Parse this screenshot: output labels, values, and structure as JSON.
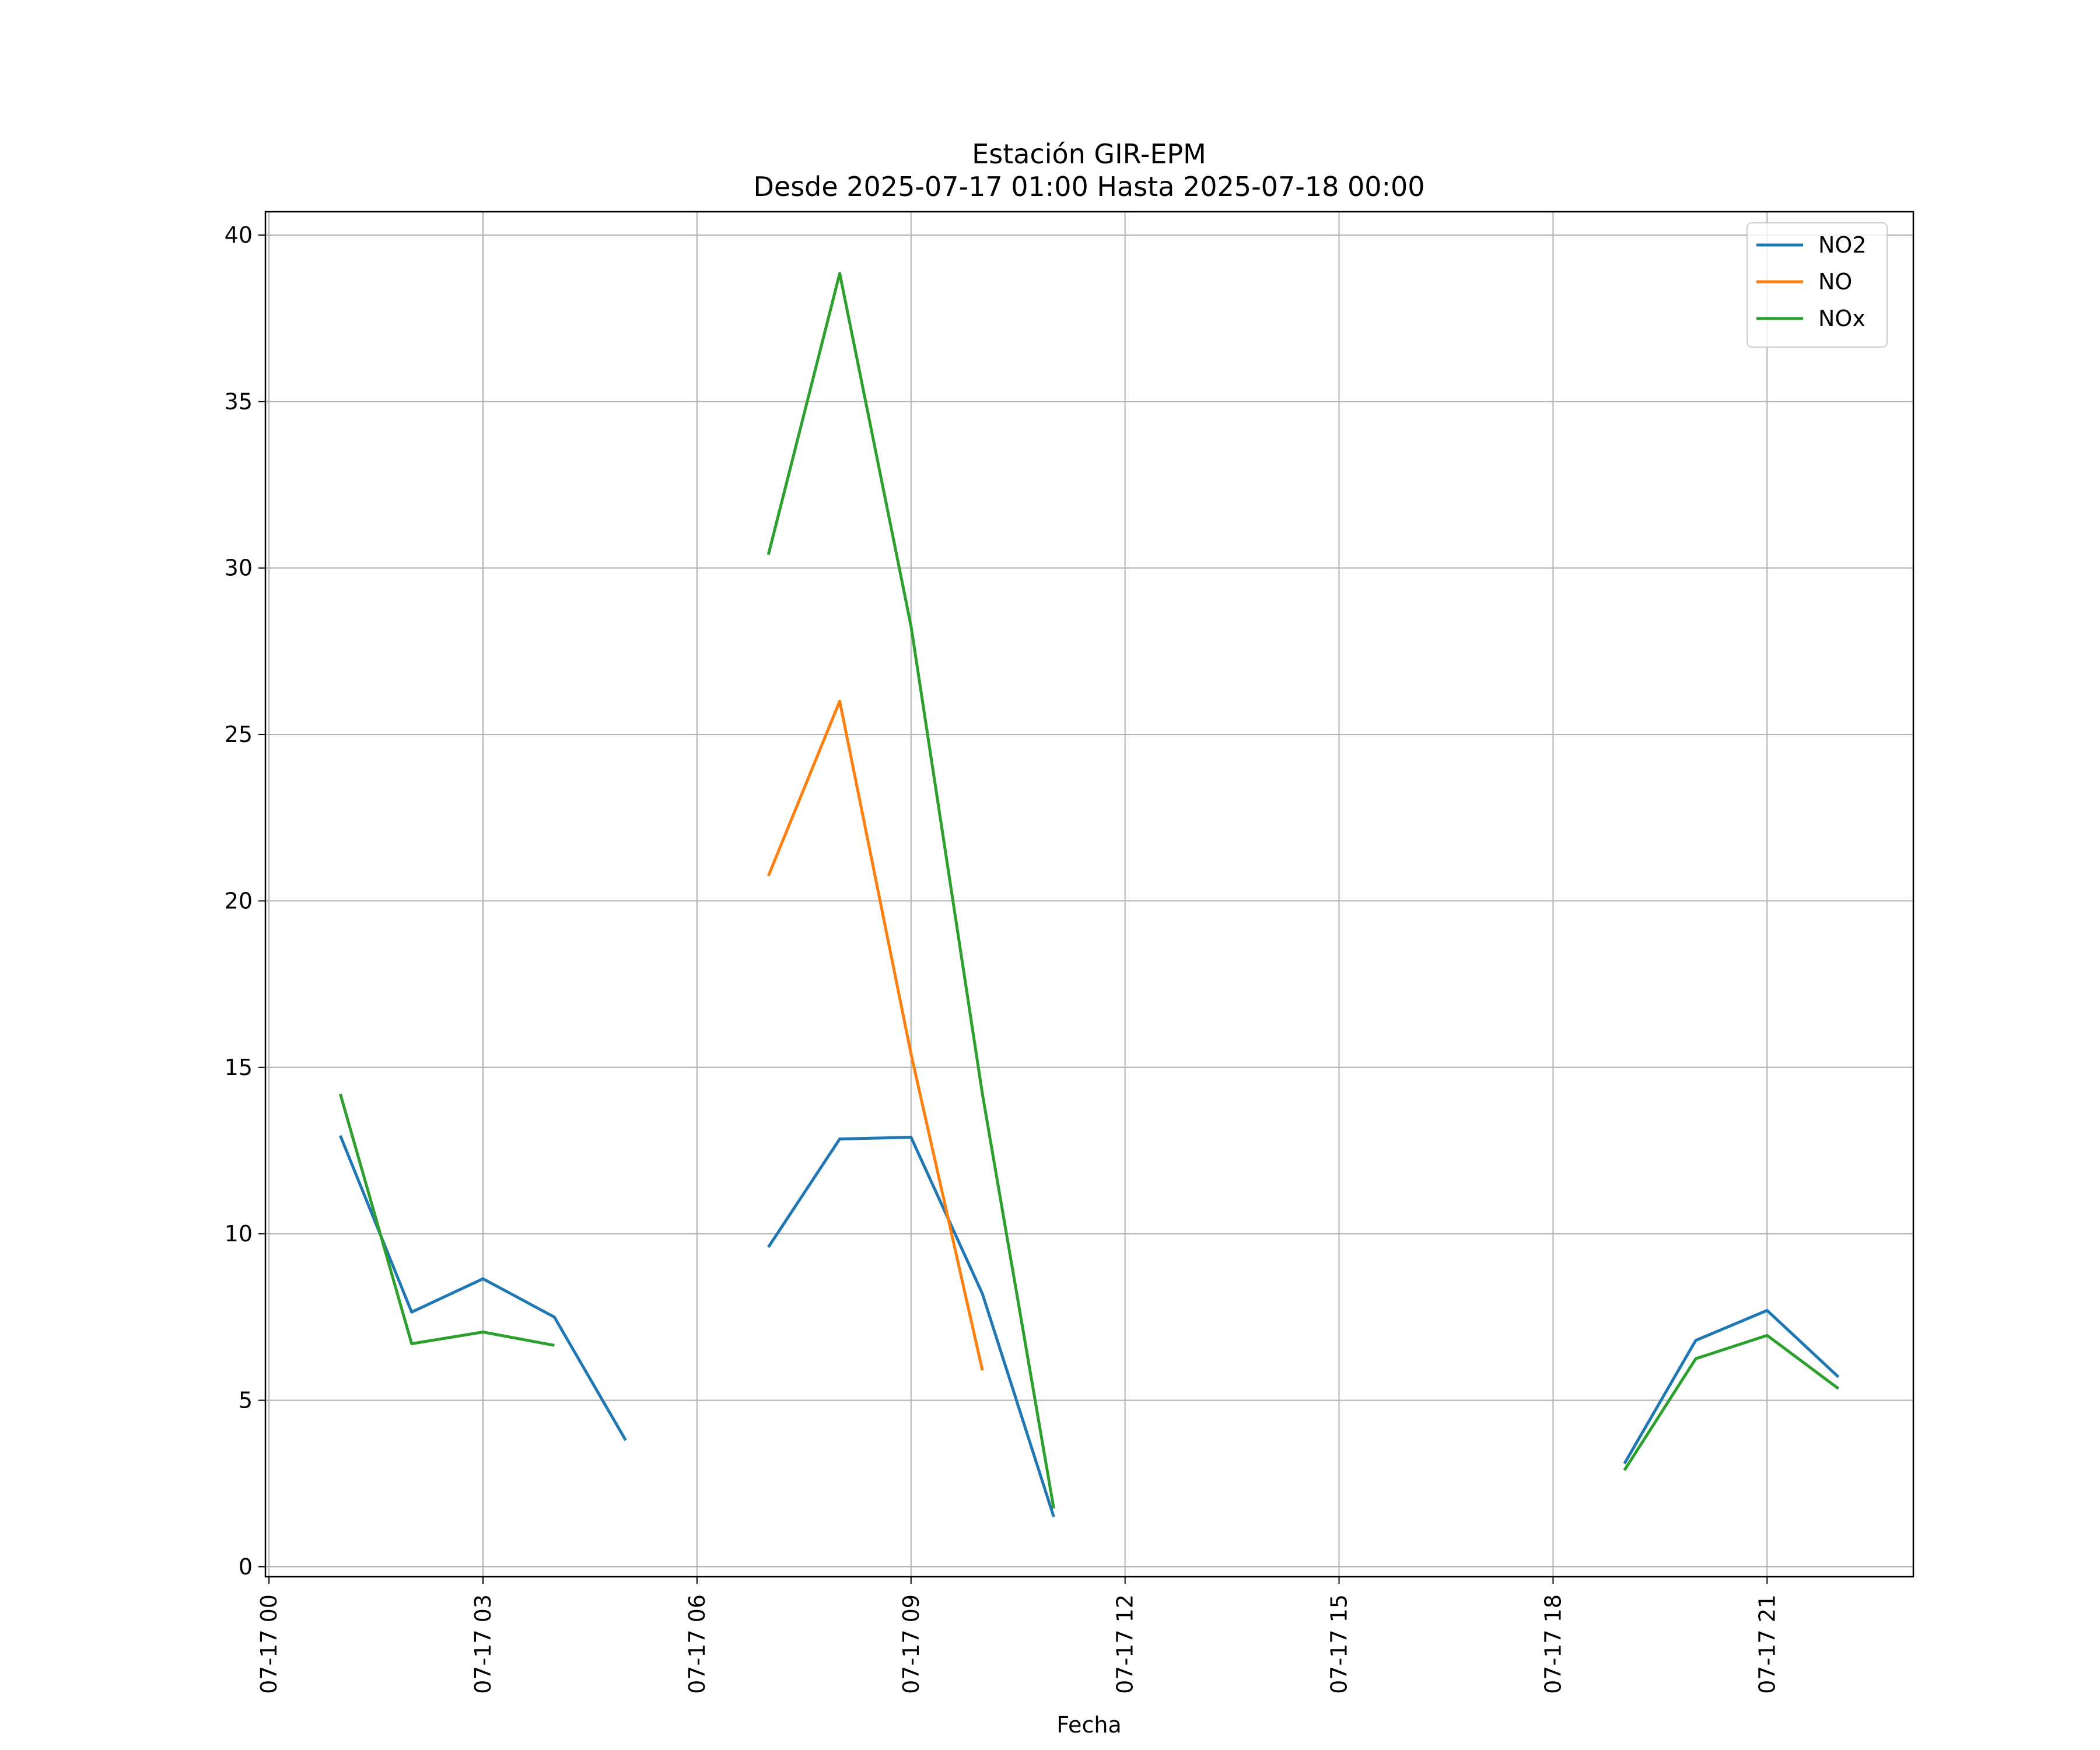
{
  "chart_data": {
    "type": "line",
    "title": "Estación GIR-EPM",
    "subtitle": "Desde 2025-07-17 01:00 Hasta 2025-07-18 00:00",
    "xlabel": "Fecha",
    "ylabel": "",
    "x": [
      "2025-07-17 01:00",
      "2025-07-17 02:00",
      "2025-07-17 03:00",
      "2025-07-17 04:00",
      "2025-07-17 05:00",
      "2025-07-17 06:00",
      "2025-07-17 07:00",
      "2025-07-17 08:00",
      "2025-07-17 09:00",
      "2025-07-17 10:00",
      "2025-07-17 11:00",
      "2025-07-17 12:00",
      "2025-07-17 13:00",
      "2025-07-17 14:00",
      "2025-07-17 15:00",
      "2025-07-17 16:00",
      "2025-07-17 17:00",
      "2025-07-17 18:00",
      "2025-07-17 19:00",
      "2025-07-17 20:00",
      "2025-07-17 21:00",
      "2025-07-17 22:00"
    ],
    "series": [
      {
        "name": "NO2",
        "color": "#1f77b4",
        "values": [
          12.95,
          7.65,
          8.65,
          7.5,
          3.8,
          null,
          9.6,
          12.85,
          12.9,
          8.2,
          1.5,
          null,
          null,
          null,
          null,
          null,
          null,
          null,
          3.1,
          6.8,
          7.7,
          5.7
        ]
      },
      {
        "name": "NO",
        "color": "#ff7f0e",
        "values": [
          null,
          null,
          null,
          null,
          null,
          null,
          20.75,
          26.0,
          15.4,
          5.9,
          null,
          null,
          null,
          null,
          null,
          null,
          null,
          null,
          null,
          null,
          null,
          null
        ]
      },
      {
        "name": "NOx",
        "color": "#2ca02c",
        "values": [
          14.2,
          6.7,
          7.05,
          6.65,
          null,
          null,
          30.4,
          38.85,
          28.25,
          14.2,
          1.75,
          null,
          null,
          null,
          null,
          null,
          null,
          null,
          2.9,
          6.25,
          6.95,
          5.35
        ]
      }
    ],
    "xticks": [
      "07-17 00",
      "07-17 03",
      "07-17 06",
      "07-17 09",
      "07-17 12",
      "07-17 15",
      "07-17 18",
      "07-17 21"
    ],
    "yticks": [
      0,
      5,
      10,
      15,
      20,
      25,
      30,
      35,
      40
    ],
    "xlim": [
      "2025-07-16 23:57",
      "2025-07-17 23:03"
    ],
    "ylim": [
      -0.3,
      40.7
    ],
    "grid": true,
    "legend_position": "top-right"
  }
}
